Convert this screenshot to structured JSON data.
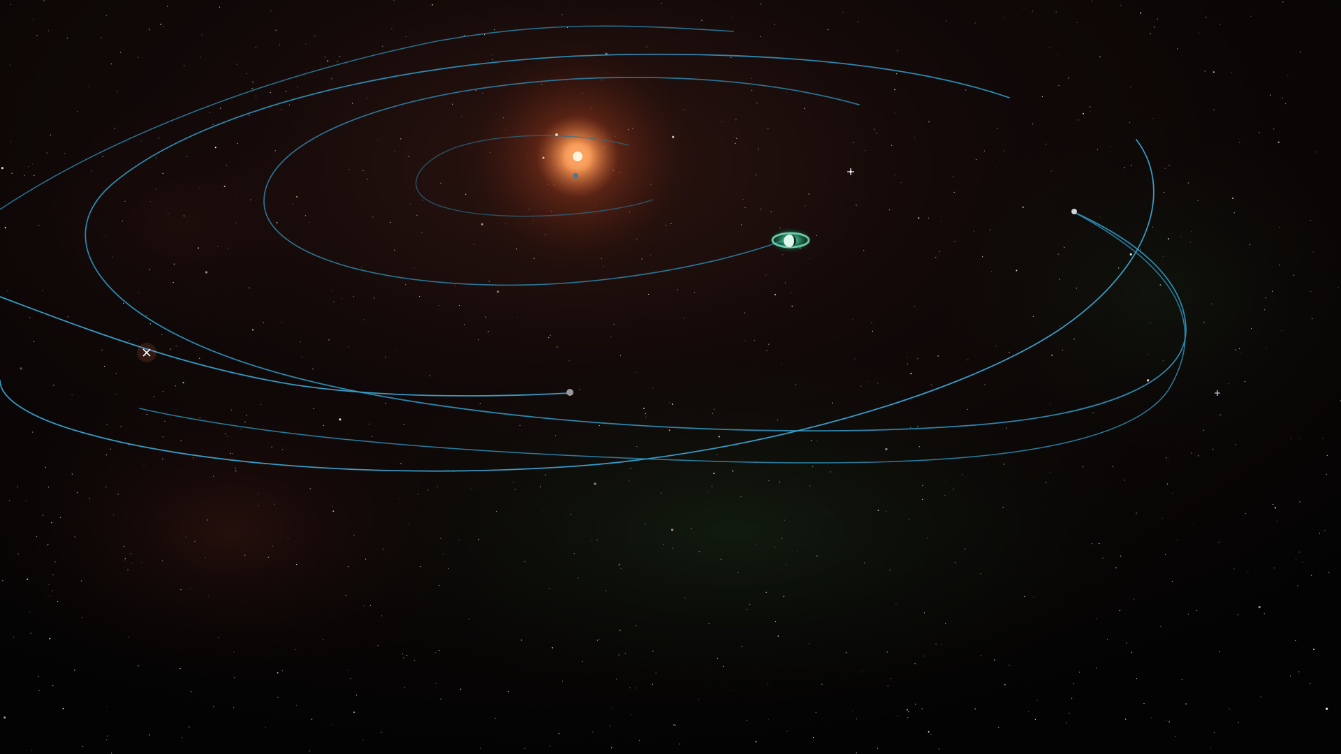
{
  "scene": {
    "view": "system-map",
    "colors": {
      "space": "#050404",
      "nebula_red": "#3a1410",
      "nebula_green": "#0f1f12",
      "orbit": "#2f8fb6",
      "orbit_glow": "#5fd0ff",
      "star": "#ffb070",
      "star_core": "#fff3dc",
      "ringed_planet": "#7fe0b2",
      "ring_glow": "#1fd79a"
    }
  },
  "bodies": {
    "star": {
      "name": "star",
      "type": "primary-star"
    },
    "inner_planet": {
      "name": "inner-planet",
      "type": "planet"
    },
    "ringed_planet": {
      "name": "ringed-planet",
      "type": "planet-with-rings"
    },
    "outer_planet_a": {
      "name": "outer-planet",
      "type": "planet"
    },
    "outer_planet_b": {
      "name": "outer-planet",
      "type": "planet"
    },
    "crossed_marker": {
      "name": "system-marker",
      "type": "icon"
    },
    "far_marker": {
      "name": "system-marker",
      "type": "icon"
    }
  },
  "orbits": [
    {
      "name": "orbit-1"
    },
    {
      "name": "orbit-2"
    },
    {
      "name": "orbit-3"
    },
    {
      "name": "orbit-4"
    },
    {
      "name": "orbit-5"
    }
  ]
}
